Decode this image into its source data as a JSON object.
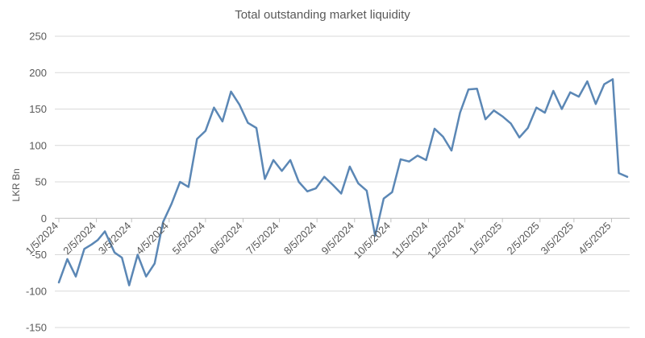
{
  "chart_data": {
    "type": "line",
    "title": "Total outstanding market liquidity",
    "ylabel": "LKR Bn",
    "xlabel": "",
    "ylim": [
      -150,
      250
    ],
    "yticks": [
      -150,
      -100,
      -50,
      0,
      50,
      100,
      150,
      200,
      250
    ],
    "grid": true,
    "legend": "none",
    "colors": {
      "line": "#5b87b5",
      "grid": "#d9d9d9",
      "axis": "#bfbfbf",
      "text": "#595959"
    },
    "x_ticks": [
      {
        "label": "1/5/2024",
        "date": "2024-01-05"
      },
      {
        "label": "2/5/2024",
        "date": "2024-02-05"
      },
      {
        "label": "3/5/2024",
        "date": "2024-03-05"
      },
      {
        "label": "4/5/2024",
        "date": "2024-04-05"
      },
      {
        "label": "5/5/2024",
        "date": "2024-05-05"
      },
      {
        "label": "6/5/2024",
        "date": "2024-06-05"
      },
      {
        "label": "7/5/2024",
        "date": "2024-07-05"
      },
      {
        "label": "8/5/2024",
        "date": "2024-08-05"
      },
      {
        "label": "9/5/2024",
        "date": "2024-09-05"
      },
      {
        "label": "10/5/2024",
        "date": "2024-10-05"
      },
      {
        "label": "11/5/2024",
        "date": "2024-11-05"
      },
      {
        "label": "12/5/2024",
        "date": "2024-12-05"
      },
      {
        "label": "1/5/2025",
        "date": "2025-01-05"
      },
      {
        "label": "2/5/2025",
        "date": "2025-02-05"
      },
      {
        "label": "3/5/2025",
        "date": "2025-03-05"
      },
      {
        "label": "4/5/2025",
        "date": "2025-04-05"
      }
    ],
    "x_range": [
      "2024-01-05",
      "2025-04-18"
    ],
    "series": [
      {
        "points": [
          [
            "2024-01-05",
            -88
          ],
          [
            "2024-01-12",
            -56
          ],
          [
            "2024-01-19",
            -80
          ],
          [
            "2024-01-26",
            -42
          ],
          [
            "2024-02-01",
            -36
          ],
          [
            "2024-02-06",
            -30
          ],
          [
            "2024-02-12",
            -18
          ],
          [
            "2024-02-20",
            -47
          ],
          [
            "2024-02-26",
            -54
          ],
          [
            "2024-03-03",
            -92
          ],
          [
            "2024-03-10",
            -50
          ],
          [
            "2024-03-17",
            -80
          ],
          [
            "2024-03-24",
            -62
          ],
          [
            "2024-03-31",
            -5
          ],
          [
            "2024-04-07",
            20
          ],
          [
            "2024-04-14",
            50
          ],
          [
            "2024-04-21",
            43
          ],
          [
            "2024-04-28",
            109
          ],
          [
            "2024-05-05",
            120
          ],
          [
            "2024-05-12",
            152
          ],
          [
            "2024-05-19",
            133
          ],
          [
            "2024-05-26",
            174
          ],
          [
            "2024-06-02",
            156
          ],
          [
            "2024-06-09",
            131
          ],
          [
            "2024-06-16",
            124
          ],
          [
            "2024-06-23",
            54
          ],
          [
            "2024-06-30",
            80
          ],
          [
            "2024-07-07",
            65
          ],
          [
            "2024-07-14",
            80
          ],
          [
            "2024-07-21",
            50
          ],
          [
            "2024-07-28",
            37
          ],
          [
            "2024-08-04",
            41
          ],
          [
            "2024-08-11",
            57
          ],
          [
            "2024-08-18",
            46
          ],
          [
            "2024-08-25",
            34
          ],
          [
            "2024-09-01",
            71
          ],
          [
            "2024-09-08",
            48
          ],
          [
            "2024-09-15",
            38
          ],
          [
            "2024-09-22",
            -24
          ],
          [
            "2024-09-29",
            27
          ],
          [
            "2024-10-06",
            36
          ],
          [
            "2024-10-13",
            81
          ],
          [
            "2024-10-20",
            78
          ],
          [
            "2024-10-27",
            86
          ],
          [
            "2024-11-03",
            80
          ],
          [
            "2024-11-10",
            123
          ],
          [
            "2024-11-17",
            112
          ],
          [
            "2024-11-24",
            93
          ],
          [
            "2024-12-01",
            145
          ],
          [
            "2024-12-08",
            177
          ],
          [
            "2024-12-15",
            178
          ],
          [
            "2024-12-22",
            136
          ],
          [
            "2024-12-29",
            148
          ],
          [
            "2025-01-05",
            140
          ],
          [
            "2025-01-12",
            130
          ],
          [
            "2025-01-19",
            111
          ],
          [
            "2025-01-26",
            124
          ],
          [
            "2025-02-02",
            152
          ],
          [
            "2025-02-09",
            145
          ],
          [
            "2025-02-16",
            175
          ],
          [
            "2025-02-23",
            150
          ],
          [
            "2025-03-02",
            173
          ],
          [
            "2025-03-09",
            167
          ],
          [
            "2025-03-16",
            188
          ],
          [
            "2025-03-23",
            157
          ],
          [
            "2025-03-30",
            184
          ],
          [
            "2025-04-06",
            191
          ],
          [
            "2025-04-11",
            62
          ],
          [
            "2025-04-18",
            57
          ]
        ]
      }
    ]
  }
}
